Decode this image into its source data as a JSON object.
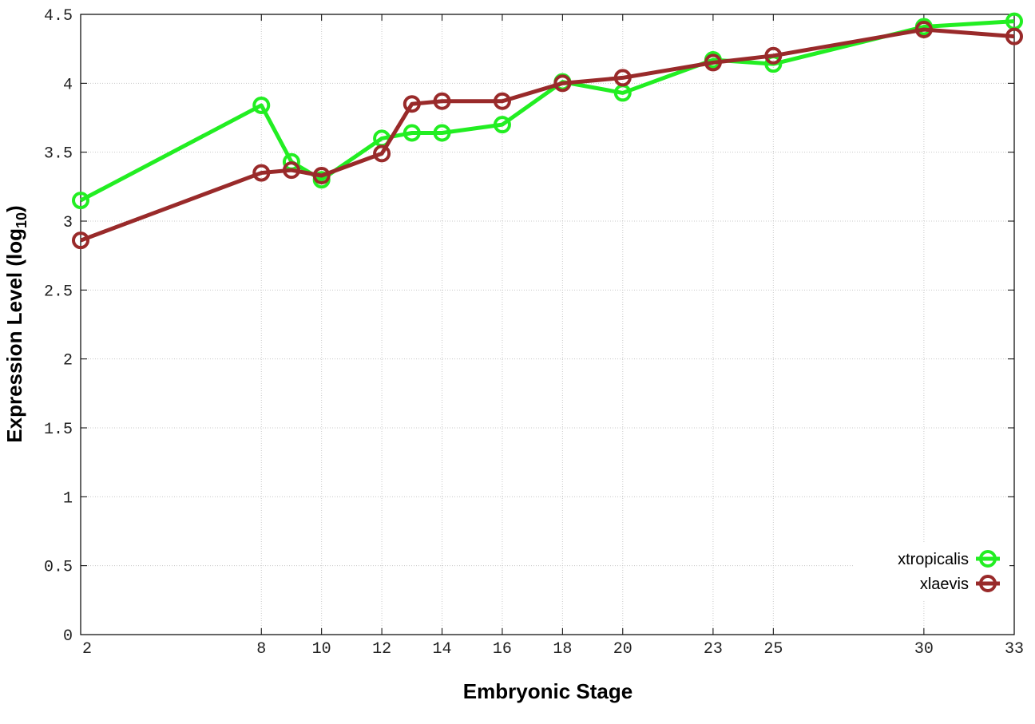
{
  "chart_data": {
    "type": "line",
    "xlabel": "Embryonic Stage",
    "ylabel_main": "Expression Level (log",
    "ylabel_sub": "10",
    "ylabel_end": ")",
    "x": [
      2,
      8,
      9,
      10,
      12,
      13,
      14,
      16,
      18,
      20,
      23,
      25,
      30,
      33
    ],
    "x_ticks": [
      2,
      8,
      10,
      12,
      14,
      16,
      18,
      20,
      23,
      25,
      30,
      33
    ],
    "ylim": [
      0,
      4.5
    ],
    "y_ticks": [
      "0",
      "0.5",
      "1",
      "1.5",
      "2",
      "2.5",
      "3",
      "3.5",
      "4",
      "4.5"
    ],
    "grid": true,
    "legend_position": "bottom-right",
    "series": [
      {
        "name": "xtropicalis",
        "color": "#22ee22",
        "values": [
          3.15,
          3.84,
          3.43,
          3.3,
          3.6,
          3.64,
          3.64,
          3.7,
          4.01,
          3.93,
          4.17,
          4.14,
          4.41,
          4.45
        ]
      },
      {
        "name": "xlaevis",
        "color": "#992a2a",
        "values": [
          2.86,
          3.35,
          3.37,
          3.33,
          3.49,
          3.85,
          3.87,
          3.87,
          4.0,
          4.04,
          4.15,
          4.2,
          4.39,
          4.34
        ]
      }
    ]
  }
}
